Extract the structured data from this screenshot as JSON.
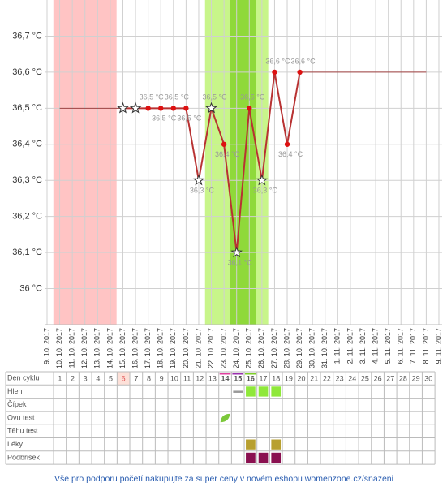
{
  "chart_data": {
    "type": "line",
    "x": [
      "9. 10. 2017",
      "10. 10. 2017",
      "11. 10. 2017",
      "12. 10. 2017",
      "13. 10. 2017",
      "14. 10. 2017",
      "15. 10. 2017",
      "16. 10. 2017",
      "17. 10. 2017",
      "18. 10. 2017",
      "19. 10. 2017",
      "20. 10. 2017",
      "21. 10. 2017",
      "22. 10. 2017",
      "23. 10. 2017",
      "24. 10. 2017",
      "25. 10. 2017",
      "26. 10. 2017",
      "27. 10. 2017",
      "28. 10. 2017",
      "29. 10. 2017",
      "30. 10. 2017",
      "31. 10. 2017",
      "1. 11. 2017",
      "2. 11. 2017",
      "3. 11. 2017",
      "4. 11. 2017",
      "5. 11. 2017",
      "6. 11. 2017",
      "7. 11. 2017",
      "8. 11. 2017",
      "9. 11. 2017"
    ],
    "series": [
      {
        "color": "#b83232",
        "marker_color": "#d11",
        "values": [
          null,
          null,
          null,
          null,
          null,
          null,
          36.5,
          36.5,
          36.5,
          36.5,
          36.5,
          36.5,
          36.3,
          36.5,
          36.4,
          36.1,
          36.5,
          36.3,
          36.6,
          36.4,
          36.6,
          null,
          null,
          null,
          null,
          null,
          null,
          null,
          null,
          null,
          null,
          null
        ],
        "markers": [
          null,
          null,
          null,
          null,
          null,
          null,
          "star",
          "star",
          "dot",
          "dot",
          "dot",
          "dot",
          "star",
          "star",
          "dot",
          "star",
          "dot",
          "star",
          "dot",
          "dot",
          "dot",
          null,
          null,
          null,
          null,
          null,
          null,
          null,
          null,
          null,
          null,
          null
        ],
        "value_labels": [
          null,
          null,
          null,
          null,
          null,
          null,
          null,
          null,
          "36,5 °C",
          "36,5 °C",
          "36,5 °C",
          "36,5 °C",
          "36,3 °C",
          "36,5 °C",
          "36,4 °C",
          "36,1 °C",
          "36,5 °C",
          "36,3 °C",
          "36,6 °C",
          "36,4 °C",
          "36,6 °C",
          null,
          null,
          null,
          null,
          null,
          null,
          null,
          null,
          null,
          null,
          null
        ]
      }
    ],
    "reference_lines": [
      {
        "value": 36.5,
        "from": "10. 10. 2017",
        "to": "15. 10. 2017"
      },
      {
        "value": 36.6,
        "from": "29. 10. 2017",
        "to": "8. 11. 2017"
      }
    ],
    "bands": [
      {
        "from": "10. 10. 2017",
        "to": "14. 10. 2017",
        "color": "#ffc4c4"
      },
      {
        "from": "22. 10. 2017",
        "to": "26. 10. 2017",
        "color": "#c8f58a"
      },
      {
        "from": "24. 10. 2017",
        "to": "25. 10. 2017",
        "color": "#8fd93a"
      }
    ],
    "ylim": [
      35.9,
      36.8
    ],
    "yticks": [
      {
        "value": 36,
        "label": "36 °C"
      },
      {
        "value": 36.1,
        "label": "36,1 °C"
      },
      {
        "value": 36.2,
        "label": "36,2 °C"
      },
      {
        "value": 36.3,
        "label": "36,3 °C"
      },
      {
        "value": 36.4,
        "label": "36,4 °C"
      },
      {
        "value": 36.5,
        "label": "36,5 °C"
      },
      {
        "value": 36.6,
        "label": "36,6 °C"
      },
      {
        "value": 36.7,
        "label": "36,7 °C"
      }
    ],
    "grid": true
  },
  "table": {
    "header": "Den cyklu",
    "days": [
      1,
      2,
      3,
      4,
      5,
      6,
      7,
      8,
      9,
      10,
      11,
      12,
      13,
      14,
      15,
      16,
      17,
      18,
      19,
      20,
      21,
      22,
      23,
      24,
      25,
      26,
      27,
      28,
      29,
      30
    ],
    "day_flags": [
      {
        "day": 6,
        "fill": "#fde0d8",
        "text_color": "#e05050"
      },
      {
        "day": 14,
        "bar": "#e040a0",
        "bold": true
      },
      {
        "day": 15,
        "bar": "#9b30b0",
        "bold": true
      },
      {
        "day": 16,
        "bar": "#7fd02a",
        "bold": true
      }
    ],
    "rows": [
      {
        "label": "Hlen",
        "marks": [
          {
            "day": 15,
            "kind": "dash",
            "color": "#999"
          },
          {
            "day": 16,
            "kind": "fill",
            "color": "#8fe83a"
          },
          {
            "day": 17,
            "kind": "fill",
            "color": "#8fe83a"
          },
          {
            "day": 18,
            "kind": "fill",
            "color": "#8fe83a"
          }
        ]
      },
      {
        "label": "Čípek",
        "marks": []
      },
      {
        "label": "Ovu test",
        "marks": [
          {
            "day": 14,
            "kind": "leaf",
            "color": "#7cc83a"
          }
        ]
      },
      {
        "label": "Těhu test",
        "marks": []
      },
      {
        "label": "Léky",
        "marks": [
          {
            "day": 16,
            "kind": "fill",
            "color": "#b8a030"
          },
          {
            "day": 18,
            "kind": "fill",
            "color": "#b8a030"
          }
        ]
      },
      {
        "label": "Podbřišek",
        "marks": [
          {
            "day": 16,
            "kind": "fill",
            "color": "#8a1050"
          },
          {
            "day": 17,
            "kind": "fill",
            "color": "#8a1050"
          },
          {
            "day": 18,
            "kind": "fill",
            "color": "#8a1050"
          }
        ]
      }
    ]
  },
  "footer": {
    "text": "Vše pro podporu početí nakupujte za super ceny v novém eshopu womenzone.cz/snazeni"
  }
}
